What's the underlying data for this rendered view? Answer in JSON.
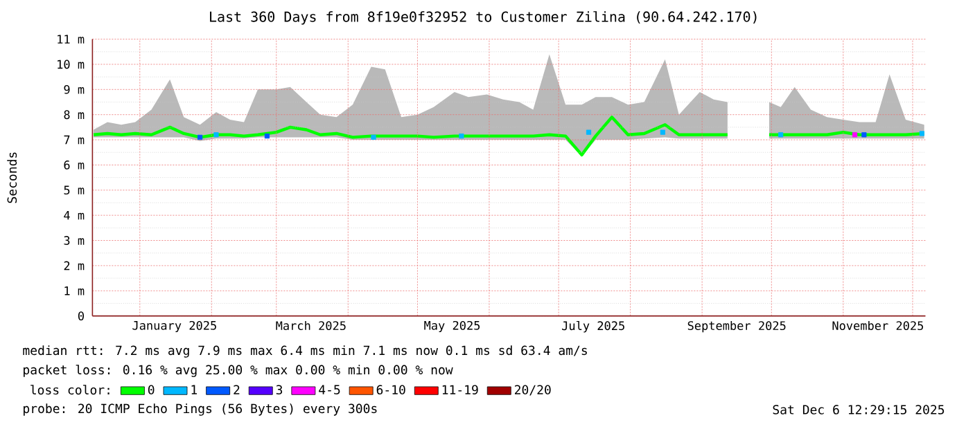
{
  "chart_data": {
    "type": "line",
    "title": "Last 360 Days from 8f19e0f32952 to Customer Zilina (90.64.242.170)",
    "ylabel": "Seconds",
    "legend_title": "loss color:",
    "x": [
      "2024-12-12",
      "2024-12-18",
      "2024-12-24",
      "2024-12-30",
      "2025-01-06",
      "2025-01-14",
      "2025-01-20",
      "2025-01-27",
      "2025-02-03",
      "2025-02-09",
      "2025-02-15",
      "2025-02-21",
      "2025-03-01",
      "2025-03-07",
      "2025-03-14",
      "2025-03-20",
      "2025-03-27",
      "2025-04-03",
      "2025-04-11",
      "2025-04-17",
      "2025-04-24",
      "2025-05-01",
      "2025-05-08",
      "2025-05-17",
      "2025-05-23",
      "2025-05-31",
      "2025-06-07",
      "2025-06-14",
      "2025-06-20",
      "2025-06-27",
      "2025-07-04",
      "2025-07-11",
      "2025-07-17",
      "2025-07-24",
      "2025-07-31",
      "2025-08-07",
      "2025-08-16",
      "2025-08-22",
      "2025-08-31",
      "2025-09-06",
      "2025-09-12",
      "2025-09-21",
      "2025-09-30",
      "2025-10-05",
      "2025-10-11",
      "2025-10-18",
      "2025-10-25",
      "2025-11-01",
      "2025-11-08",
      "2025-11-15",
      "2025-11-21",
      "2025-11-28",
      "2025-12-06"
    ],
    "series": [
      {
        "name": "0",
        "color": "#00ff00",
        "values": [
          7.2,
          7.25,
          7.2,
          7.25,
          7.2,
          7.5,
          7.25,
          7.1,
          7.2,
          7.2,
          7.15,
          7.2,
          7.3,
          7.5,
          7.4,
          7.2,
          7.25,
          7.1,
          7.15,
          7.15,
          7.15,
          7.15,
          7.1,
          7.15,
          7.15,
          7.15,
          7.15,
          7.15,
          7.15,
          7.2,
          7.15,
          6.4,
          7.15,
          7.9,
          7.2,
          7.25,
          7.6,
          7.2,
          7.2,
          7.2,
          7.2,
          null,
          7.2,
          7.2,
          7.2,
          7.2,
          7.2,
          7.3,
          7.2,
          7.2,
          7.2,
          7.2,
          7.25
        ],
        "upper": [
          7.4,
          7.7,
          7.6,
          7.7,
          8.2,
          9.4,
          7.9,
          7.6,
          8.1,
          7.8,
          7.7,
          9.0,
          9.0,
          9.1,
          8.5,
          8.0,
          7.9,
          8.4,
          9.9,
          9.8,
          7.9,
          8.0,
          8.3,
          8.9,
          8.7,
          8.8,
          8.6,
          8.5,
          8.2,
          10.4,
          8.4,
          8.4,
          8.7,
          8.7,
          8.4,
          8.5,
          10.2,
          8.0,
          8.9,
          8.6,
          8.5,
          null,
          8.5,
          8.3,
          9.1,
          8.2,
          7.9,
          7.8,
          7.7,
          7.7,
          9.6,
          7.8,
          7.6
        ],
        "lower": [
          7.1,
          7.1,
          7.1,
          7.1,
          7.1,
          7.1,
          7.1,
          6.95,
          7.05,
          7.05,
          7.05,
          7.1,
          7.1,
          7.1,
          7.1,
          7.1,
          7.1,
          7.0,
          7.0,
          7.0,
          7.0,
          7.0,
          7.0,
          7.0,
          7.0,
          7.0,
          7.0,
          7.0,
          7.0,
          7.0,
          7.0,
          6.35,
          7.0,
          7.0,
          7.0,
          7.05,
          7.1,
          7.05,
          7.05,
          7.05,
          7.05,
          null,
          7.05,
          7.05,
          7.05,
          7.05,
          7.05,
          7.05,
          7.05,
          7.05,
          7.05,
          7.05,
          7.05
        ]
      },
      {
        "name": "1",
        "color": "#00b8ff",
        "type": "scatter",
        "marker": "square",
        "x": [
          "2025-02-03",
          "2025-04-12",
          "2025-05-20",
          "2025-07-14",
          "2025-08-15",
          "2025-10-05",
          "2025-12-05"
        ],
        "values": [
          7.2,
          7.1,
          7.15,
          7.3,
          7.3,
          7.2,
          7.25
        ]
      },
      {
        "name": "2",
        "color": "#0059ff",
        "type": "scatter",
        "marker": "square",
        "x": [
          "2025-01-27",
          "2025-02-25",
          "2025-11-10"
        ],
        "values": [
          7.1,
          7.15,
          7.2
        ]
      },
      {
        "name": "3",
        "color": "#5500ff",
        "type": "scatter",
        "marker": "square",
        "values": [
          null,
          null,
          null,
          null,
          null,
          null,
          null,
          null,
          null,
          null,
          null,
          null,
          null,
          null,
          null,
          null,
          null,
          null,
          null,
          null,
          null,
          null,
          null,
          null,
          null,
          null,
          null,
          null,
          null,
          null,
          null,
          null,
          null,
          null,
          null,
          null,
          null,
          null,
          null,
          null,
          null,
          null,
          null,
          null,
          null,
          null,
          null,
          null,
          null,
          null,
          null,
          null,
          null
        ]
      },
      {
        "name": "4-5",
        "color": "#ff00ff",
        "type": "scatter",
        "marker": "square",
        "x": [
          "2025-11-06"
        ],
        "values": [
          7.2
        ]
      },
      {
        "name": "6-10",
        "color": "#ff5500",
        "type": "scatter",
        "marker": "square",
        "values": [
          null,
          null,
          null,
          null,
          null,
          null,
          null,
          null,
          null,
          null,
          null,
          null,
          null,
          null,
          null,
          null,
          null,
          null,
          null,
          null,
          null,
          null,
          null,
          null,
          null,
          null,
          null,
          null,
          null,
          null,
          null,
          null,
          null,
          null,
          null,
          null,
          null,
          null,
          null,
          null,
          null,
          null,
          null,
          null,
          null,
          null,
          null,
          null,
          null,
          null,
          null,
          null,
          null
        ]
      },
      {
        "name": "11-19",
        "color": "#ff0000",
        "type": "scatter",
        "marker": "square",
        "values": [
          null,
          null,
          null,
          null,
          null,
          null,
          null,
          null,
          null,
          null,
          null,
          null,
          null,
          null,
          null,
          null,
          null,
          null,
          null,
          null,
          null,
          null,
          null,
          null,
          null,
          null,
          null,
          null,
          null,
          null,
          null,
          null,
          null,
          null,
          null,
          null,
          null,
          null,
          null,
          null,
          null,
          null,
          null,
          null,
          null,
          null,
          null,
          null,
          null,
          null,
          null,
          null,
          null
        ]
      },
      {
        "name": "20/20",
        "color": "#a10000",
        "type": "scatter",
        "marker": "square",
        "values": [
          null,
          null,
          null,
          null,
          null,
          null,
          null,
          null,
          null,
          null,
          null,
          null,
          null,
          null,
          null,
          null,
          null,
          null,
          null,
          null,
          null,
          null,
          null,
          null,
          null,
          null,
          null,
          null,
          null,
          null,
          null,
          null,
          null,
          null,
          null,
          null,
          null,
          null,
          null,
          null,
          null,
          null,
          null,
          null,
          null,
          null,
          null,
          null,
          null,
          null,
          null,
          null,
          null
        ]
      }
    ],
    "xlim": [
      "2024-12-11T12:29",
      "2025-12-06T12:29"
    ],
    "ylim": [
      0,
      11
    ],
    "xticks": [
      {
        "value": "2025-01-01",
        "label": null
      },
      {
        "value": "2025-01-16",
        "label": "January 2025"
      },
      {
        "value": "2025-02-01",
        "label": null
      },
      {
        "value": "2025-03-01",
        "label": null
      },
      {
        "value": "2025-03-16",
        "label": "March 2025"
      },
      {
        "value": "2025-04-01",
        "label": null
      },
      {
        "value": "2025-05-01",
        "label": null
      },
      {
        "value": "2025-05-16",
        "label": "May 2025"
      },
      {
        "value": "2025-06-01",
        "label": null
      },
      {
        "value": "2025-07-01",
        "label": null
      },
      {
        "value": "2025-07-16",
        "label": "July 2025"
      },
      {
        "value": "2025-08-01",
        "label": null
      },
      {
        "value": "2025-09-01",
        "label": null
      },
      {
        "value": "2025-09-16",
        "label": "September 2025"
      },
      {
        "value": "2025-10-01",
        "label": null
      },
      {
        "value": "2025-11-01",
        "label": null
      },
      {
        "value": "2025-11-16",
        "label": "November 2025"
      },
      {
        "value": "2025-12-01",
        "label": null
      }
    ],
    "yticks": [
      0,
      {
        "value": 1,
        "label": "1 m"
      },
      {
        "value": 2,
        "label": "2 m"
      },
      {
        "value": 3,
        "label": "3 m"
      },
      {
        "value": 4,
        "label": "4 m"
      },
      {
        "value": 5,
        "label": "5 m"
      },
      {
        "value": 6,
        "label": "6 m"
      },
      {
        "value": 7,
        "label": "7 m"
      },
      {
        "value": 8,
        "label": "8 m"
      },
      {
        "value": 9,
        "label": "9 m"
      },
      {
        "value": 10,
        "label": "10 m"
      },
      {
        "value": 11,
        "label": "11 m"
      }
    ],
    "grid": true,
    "legend": "bottom",
    "annotations": [
      "median rtt: 7.2 ms avg 7.9 ms max 6.4 ms min 7.1 ms now 0.1 ms sd 63.4 am/s",
      "packet loss: 0.16 % avg 25.00 % max 0.00 % min 0.00 % now",
      "probe: 20 ICMP Echo Pings (56 Bytes) every 300s",
      "Sat Dec 6 12:29:15 2025"
    ]
  }
}
